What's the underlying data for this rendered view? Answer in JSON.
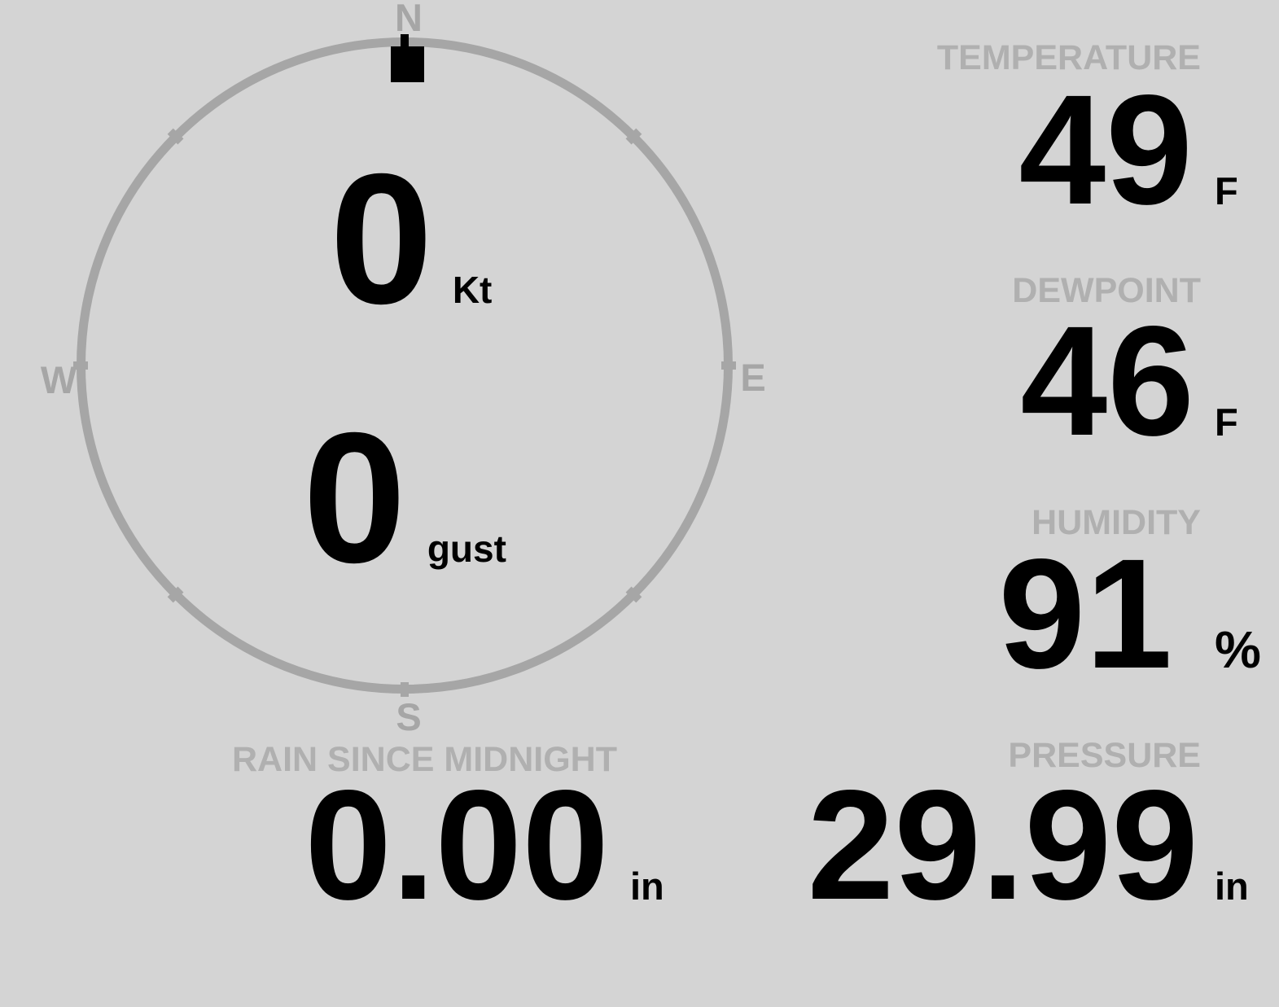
{
  "colors": {
    "background": "#d4d4d4",
    "dial": "#a6a6a6",
    "label_gray": "#b0b0b0",
    "value_black": "#000000",
    "marker_black": "#000000"
  },
  "compass": {
    "cardinals": {
      "n": "N",
      "e": "E",
      "s": "S",
      "w": "W"
    },
    "wind": {
      "speed_value": "0",
      "speed_unit": "Kt",
      "gust_value": "0",
      "gust_unit": "gust",
      "direction": "N"
    }
  },
  "metrics": {
    "temperature": {
      "label": "TEMPERATURE",
      "value": "49",
      "unit": "F"
    },
    "dewpoint": {
      "label": "DEWPOINT",
      "value": "46",
      "unit": "F"
    },
    "humidity": {
      "label": "HUMIDITY",
      "value": "91",
      "unit": "%"
    },
    "rain_since_midnight": {
      "label": "RAIN SINCE MIDNIGHT",
      "value": "0.00",
      "unit": "in"
    },
    "pressure": {
      "label": "PRESSURE",
      "value": "29.99",
      "unit": "in"
    }
  }
}
